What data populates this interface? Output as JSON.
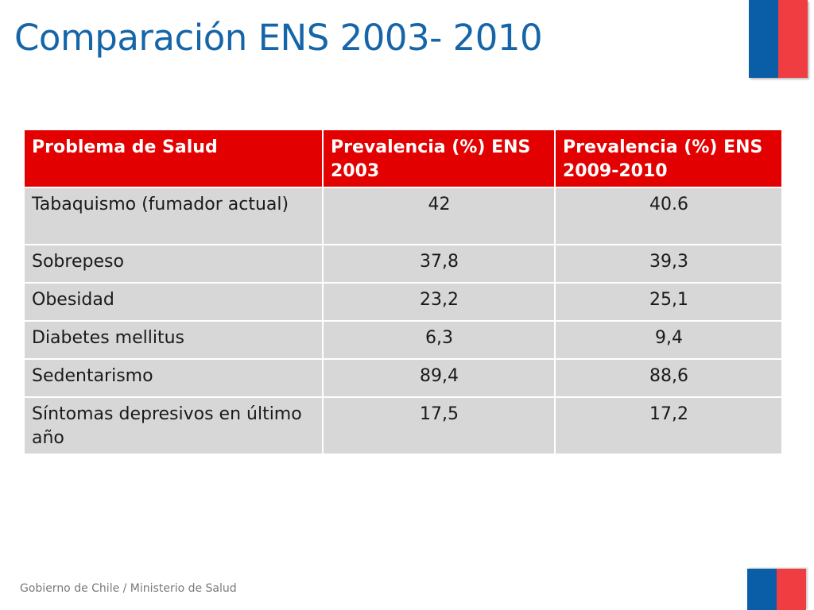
{
  "slide": {
    "title": "Comparación ENS 2003- 2010",
    "footer": "Gobierno de Chile / Ministerio de Salud"
  },
  "colors": {
    "title": "#1565a8",
    "header_bg": "#e30000",
    "flag_blue": "#0a5ea8",
    "flag_red": "#ef3d42",
    "cell_bg": "#d7d7d7"
  },
  "table": {
    "headers": [
      "Problema de Salud",
      "Prevalencia (%) ENS 2003",
      "Prevalencia (%) ENS 2009-2010"
    ],
    "rows": [
      {
        "problem": "Tabaquismo (fumador actual)",
        "ens_2003": "42",
        "ens_2009_2010": "40.6"
      },
      {
        "problem": "Sobrepeso",
        "ens_2003": "37,8",
        "ens_2009_2010": "39,3"
      },
      {
        "problem": "Obesidad",
        "ens_2003": "23,2",
        "ens_2009_2010": "25,1"
      },
      {
        "problem": "Diabetes mellitus",
        "ens_2003": "6,3",
        "ens_2009_2010": "9,4"
      },
      {
        "problem": "Sedentarismo",
        "ens_2003": "89,4",
        "ens_2009_2010": "88,6"
      },
      {
        "problem": "Síntomas depresivos en último año",
        "ens_2003": "17,5",
        "ens_2009_2010": "17,2"
      }
    ]
  }
}
